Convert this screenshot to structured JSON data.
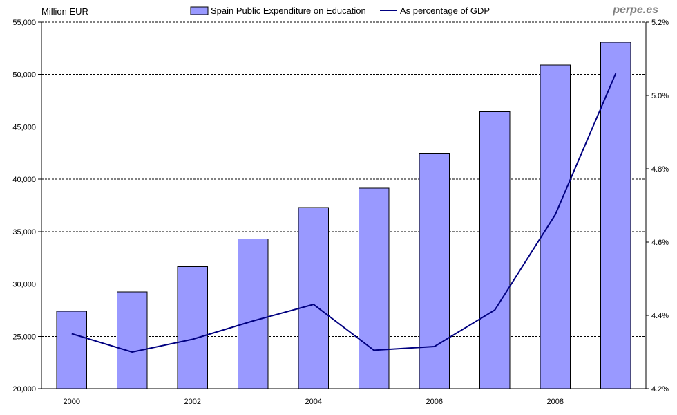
{
  "chart_data": {
    "type": "bar",
    "x": [
      2000,
      2001,
      2002,
      2003,
      2004,
      2005,
      2006,
      2007,
      2008,
      2009
    ],
    "x_tick_labels": [
      "2000",
      "2002",
      "2004",
      "2006",
      "2008"
    ],
    "series": [
      {
        "name": "Spain Public Expenditure on Education",
        "type": "bar",
        "axis": "left",
        "color": "#9999ff",
        "values": [
          27400,
          29250,
          31650,
          34300,
          37300,
          39150,
          42500,
          46450,
          50900,
          53100
        ]
      },
      {
        "name": "As percentage of GDP",
        "type": "line",
        "axis": "right",
        "color": "#000080",
        "values": [
          4.35,
          4.3,
          4.335,
          4.385,
          4.43,
          4.305,
          4.315,
          4.415,
          4.675,
          5.06
        ]
      }
    ],
    "left_axis": {
      "unit_label": "Million EUR",
      "range": [
        20000,
        55000
      ],
      "ticks": [
        20000,
        25000,
        30000,
        35000,
        40000,
        45000,
        50000,
        55000
      ],
      "tick_labels": [
        "20,000",
        "25,000",
        "30,000",
        "35,000",
        "40,000",
        "45,000",
        "50,000",
        "55,000"
      ]
    },
    "right_axis": {
      "range": [
        4.2,
        5.2
      ],
      "ticks": [
        4.2,
        4.4,
        4.6,
        4.8,
        5.0,
        5.2
      ],
      "tick_labels": [
        "4.2%",
        "4.4%",
        "4.6%",
        "4.8%",
        "5.0%",
        "5.2%"
      ]
    },
    "grid": "horizontal dashed",
    "legend_position": "top-center",
    "source_watermark": "perpe.es"
  }
}
